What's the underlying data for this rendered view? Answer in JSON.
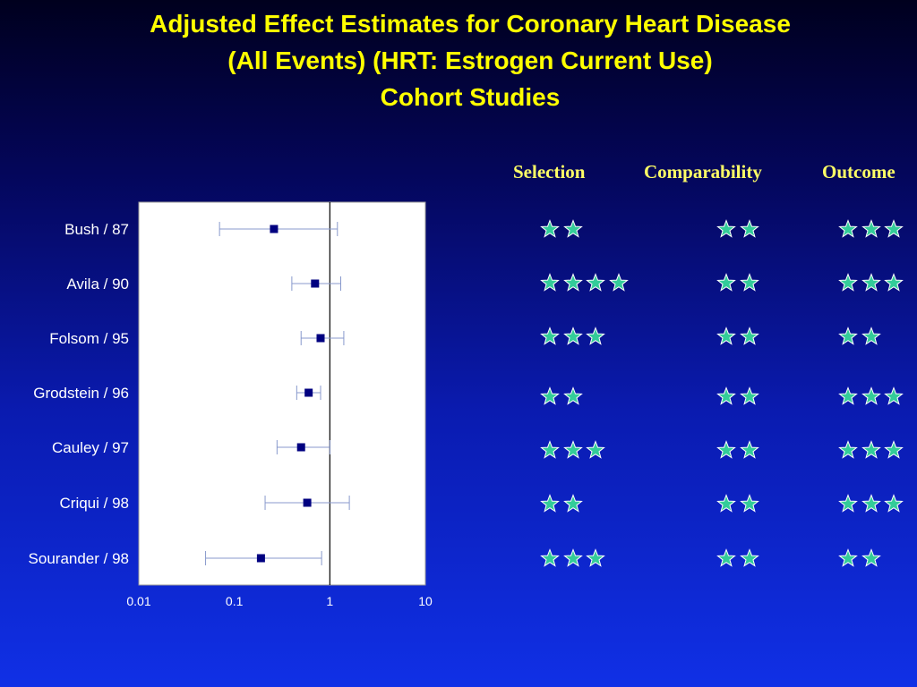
{
  "title": {
    "line1": "Adjusted Effect Estimates for Coronary Heart Disease",
    "line2": "(All Events)  (HRT: Estrogen Current Use)",
    "line3": "Cohort Studies"
  },
  "columns": {
    "selection": "Selection",
    "comparability": "Comparability",
    "outcome": "Outcome"
  },
  "colors": {
    "star_fill": "#33cc99",
    "star_stroke": "#ffffff",
    "marker": "#000080",
    "ci_line": "#8899cc",
    "title": "#ffff00",
    "header": "#ffff66"
  },
  "chart_data": {
    "type": "scatter",
    "scale": "log",
    "xlim": [
      0.01,
      10
    ],
    "x_ticks": [
      "0.01",
      "0.1",
      "1",
      "10"
    ],
    "reference_line": 1,
    "studies": [
      {
        "label": "Bush / 87",
        "estimate": 0.26,
        "ci_low": 0.07,
        "ci_high": 1.2
      },
      {
        "label": "Avila / 90",
        "estimate": 0.7,
        "ci_low": 0.4,
        "ci_high": 1.3
      },
      {
        "label": "Folsom / 95",
        "estimate": 0.8,
        "ci_low": 0.5,
        "ci_high": 1.4
      },
      {
        "label": "Grodstein / 96",
        "estimate": 0.6,
        "ci_low": 0.45,
        "ci_high": 0.8
      },
      {
        "label": "Cauley / 97",
        "estimate": 0.5,
        "ci_low": 0.28,
        "ci_high": 1.0
      },
      {
        "label": "Criqui / 98",
        "estimate": 0.58,
        "ci_low": 0.21,
        "ci_high": 1.6
      },
      {
        "label": "Sourander / 98",
        "estimate": 0.19,
        "ci_low": 0.05,
        "ci_high": 0.82
      }
    ]
  },
  "quality_ratings": [
    {
      "selection": 2,
      "comparability": 2,
      "outcome": 3
    },
    {
      "selection": 4,
      "comparability": 2,
      "outcome": 3
    },
    {
      "selection": 3,
      "comparability": 2,
      "outcome": 2
    },
    {
      "selection": 2,
      "comparability": 2,
      "outcome": 3
    },
    {
      "selection": 3,
      "comparability": 2,
      "outcome": 3
    },
    {
      "selection": 2,
      "comparability": 2,
      "outcome": 3
    },
    {
      "selection": 3,
      "comparability": 2,
      "outcome": 2
    }
  ]
}
